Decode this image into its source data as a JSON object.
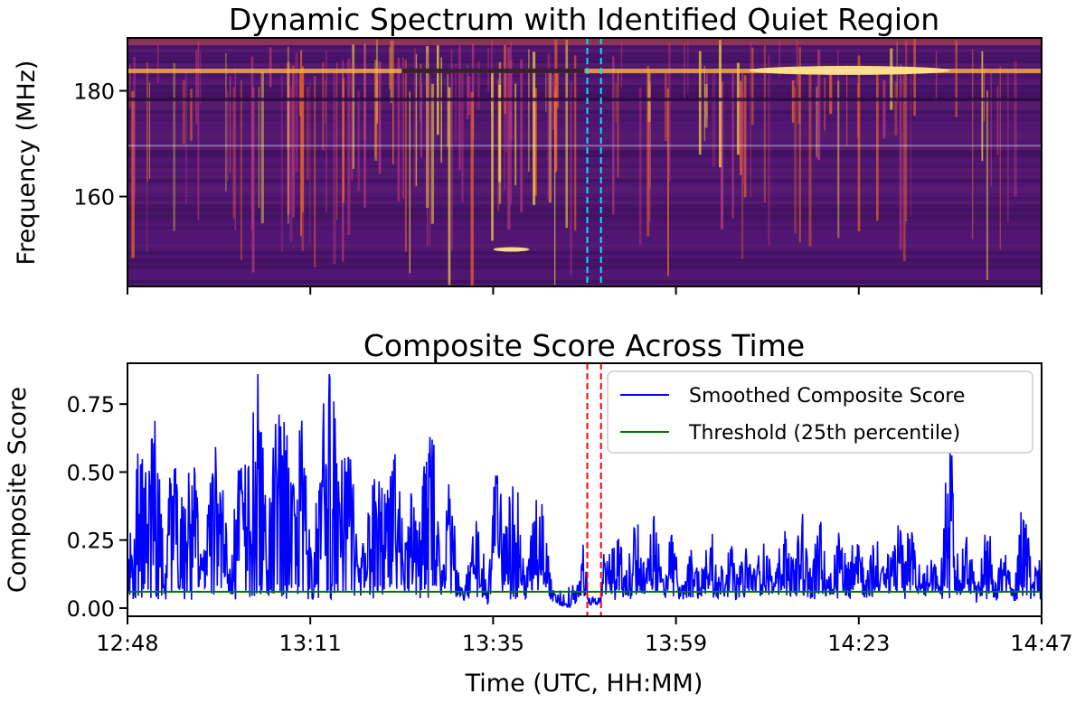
{
  "spectrum": {
    "title": "Dynamic Spectrum with Identified Quiet Region",
    "ylabel": "Frequency (MHz)",
    "yticks": [
      "160",
      "180"
    ],
    "ytick_values": [
      160,
      180
    ],
    "ylim": [
      143,
      190
    ],
    "colormap": "inferno",
    "quiet_marker_color": "#00e5ff"
  },
  "chart_data": {
    "type": "line",
    "title": "Composite Score Across Time",
    "xlabel": "Time (UTC, HH:MM)",
    "ylabel": "Composite Score",
    "xticks": [
      "12:48",
      "13:11",
      "13:35",
      "13:59",
      "14:23",
      "14:47"
    ],
    "ylim": [
      -0.03,
      0.9
    ],
    "yticks": [
      "0.00",
      "0.25",
      "0.50",
      "0.75"
    ],
    "ytick_values": [
      0.0,
      0.25,
      0.5,
      0.75
    ],
    "legend_position": "top-right",
    "series": [
      {
        "name": "Smoothed Composite Score",
        "color": "#0000ff",
        "keypoints": [
          [
            0,
            0.12
          ],
          [
            1,
            0.55
          ],
          [
            2,
            0.45
          ],
          [
            3,
            0.62
          ],
          [
            4,
            0.2
          ],
          [
            5,
            0.5
          ],
          [
            6,
            0.35
          ],
          [
            7,
            0.58
          ],
          [
            8,
            0.15
          ],
          [
            9,
            0.44
          ],
          [
            10,
            0.6
          ],
          [
            11,
            0.1
          ],
          [
            12,
            0.48
          ],
          [
            13,
            0.52
          ],
          [
            14,
            0.85
          ],
          [
            15,
            0.3
          ],
          [
            16,
            0.55
          ],
          [
            17,
            0.62
          ],
          [
            18,
            0.4
          ],
          [
            19,
            0.6
          ],
          [
            20,
            0.15
          ],
          [
            21,
            0.52
          ],
          [
            22,
            0.85
          ],
          [
            23,
            0.4
          ],
          [
            24,
            0.55
          ],
          [
            25,
            0.12
          ],
          [
            26,
            0.3
          ],
          [
            27,
            0.5
          ],
          [
            28,
            0.35
          ],
          [
            29,
            0.55
          ],
          [
            30,
            0.2
          ],
          [
            31,
            0.4
          ],
          [
            32,
            0.45
          ],
          [
            33,
            0.55
          ],
          [
            34,
            0.1
          ],
          [
            35,
            0.5
          ],
          [
            36,
            0.05
          ],
          [
            37,
            0.15
          ],
          [
            38,
            0.3
          ],
          [
            39,
            0.05
          ],
          [
            40,
            0.5
          ],
          [
            41,
            0.25
          ],
          [
            42,
            0.48
          ],
          [
            43,
            0.1
          ],
          [
            44,
            0.3
          ],
          [
            45,
            0.35
          ],
          [
            46,
            0.06
          ],
          [
            47,
            0.02
          ],
          [
            48,
            0.01
          ],
          [
            49,
            0.12
          ],
          [
            50,
            0.3
          ],
          [
            51,
            0.2
          ],
          [
            52,
            0.15
          ],
          [
            53,
            0.25
          ],
          [
            54,
            0.1
          ],
          [
            55,
            0.28
          ],
          [
            56,
            0.15
          ],
          [
            57,
            0.3
          ],
          [
            58,
            0.1
          ],
          [
            59,
            0.25
          ],
          [
            60,
            0.05
          ],
          [
            61,
            0.2
          ],
          [
            62,
            0.12
          ],
          [
            63,
            0.28
          ],
          [
            64,
            0.1
          ],
          [
            65,
            0.25
          ],
          [
            66,
            0.1
          ],
          [
            67,
            0.2
          ],
          [
            68,
            0.12
          ],
          [
            69,
            0.22
          ],
          [
            70,
            0.08
          ],
          [
            71,
            0.28
          ],
          [
            72,
            0.15
          ],
          [
            73,
            0.3
          ],
          [
            74,
            0.12
          ],
          [
            75,
            0.28
          ],
          [
            76,
            0.1
          ],
          [
            77,
            0.26
          ],
          [
            78,
            0.15
          ],
          [
            79,
            0.3
          ],
          [
            80,
            0.1
          ],
          [
            81,
            0.25
          ],
          [
            82,
            0.12
          ],
          [
            83,
            0.28
          ],
          [
            84,
            0.2
          ],
          [
            85,
            0.3
          ],
          [
            86,
            0.1
          ],
          [
            87,
            0.22
          ],
          [
            88,
            0.08
          ],
          [
            89,
            0.57
          ],
          [
            90,
            0.12
          ],
          [
            91,
            0.25
          ],
          [
            92,
            0.05
          ],
          [
            93,
            0.3
          ],
          [
            94,
            0.1
          ],
          [
            95,
            0.2
          ],
          [
            96,
            0.05
          ],
          [
            97,
            0.35
          ],
          [
            98,
            0.15
          ],
          [
            99,
            0.17
          ]
        ]
      },
      {
        "name": "Threshold (25th percentile)",
        "color": "#007700",
        "value": 0.06
      }
    ],
    "quiet_marker_color": "#ff0000",
    "quiet_region_fraction": [
      0.503,
      0.518
    ]
  }
}
